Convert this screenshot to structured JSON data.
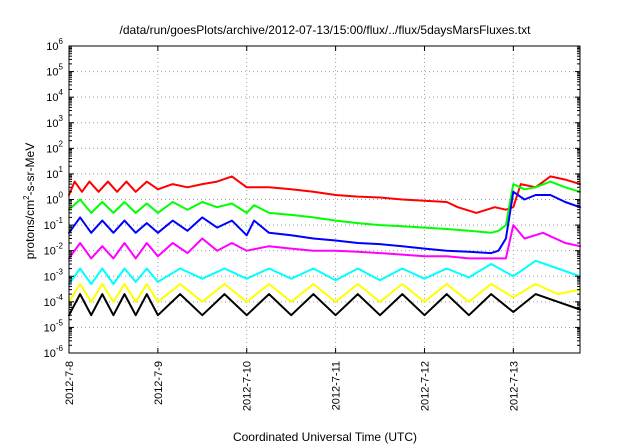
{
  "chart_data": {
    "type": "line",
    "title": "/data/run/goesPlots/archive/2012-07-13/15:00/flux/../flux/5daysMarsFluxes.txt",
    "xlabel": "Coordinated Universal Time (UTC)",
    "ylabel": "protons/cm²-s-sr-MeV",
    "y_scale": "log",
    "ylim": [
      1e-06,
      1000000.0
    ],
    "xlim": [
      "2012-07-08 00:00",
      "2012-07-13 18:00"
    ],
    "grid": true,
    "legend": "none",
    "x_ticks": [
      {
        "value": "2012-07-08 00:00",
        "label": "2012-7-8"
      },
      {
        "value": "2012-07-09 00:00",
        "label": "2012-7-9"
      },
      {
        "value": "2012-07-10 00:00",
        "label": "2012-7-10"
      },
      {
        "value": "2012-07-11 00:00",
        "label": "2012-7-11"
      },
      {
        "value": "2012-07-12 00:00",
        "label": "2012-7-12"
      },
      {
        "value": "2012-07-13 00:00",
        "label": "2012-7-13"
      }
    ],
    "y_ticks": [
      {
        "value": 1e-06,
        "base": "10",
        "exp": "-6"
      },
      {
        "value": 1e-05,
        "base": "10",
        "exp": "-5"
      },
      {
        "value": 0.0001,
        "base": "10",
        "exp": "-4"
      },
      {
        "value": 0.001,
        "base": "10",
        "exp": "-3"
      },
      {
        "value": 0.01,
        "base": "10",
        "exp": "-2"
      },
      {
        "value": 0.1,
        "base": "10",
        "exp": "-1"
      },
      {
        "value": 1,
        "base": "10",
        "exp": "0"
      },
      {
        "value": 10,
        "base": "10",
        "exp": "1"
      },
      {
        "value": 100,
        "base": "10",
        "exp": "2"
      },
      {
        "value": 1000,
        "base": "10",
        "exp": "3"
      },
      {
        "value": 10000,
        "base": "10",
        "exp": "4"
      },
      {
        "value": 100000,
        "base": "10",
        "exp": "5"
      },
      {
        "value": 1000000,
        "base": "10",
        "exp": "6"
      }
    ],
    "series": [
      {
        "color": "#ff0000",
        "x": [
          "2012-07-08 00:00",
          "2012-07-08 01:30",
          "2012-07-08 03:30",
          "2012-07-08 05:30",
          "2012-07-08 08:00",
          "2012-07-08 10:30",
          "2012-07-08 13:00",
          "2012-07-08 15:30",
          "2012-07-08 18:00",
          "2012-07-08 21:00",
          "2012-07-09 00:00",
          "2012-07-09 04:00",
          "2012-07-09 08:00",
          "2012-07-09 12:00",
          "2012-07-09 16:00",
          "2012-07-09 20:00",
          "2012-07-10 00:00",
          "2012-07-10 06:00",
          "2012-07-10 12:00",
          "2012-07-10 18:00",
          "2012-07-11 00:00",
          "2012-07-11 06:00",
          "2012-07-11 12:00",
          "2012-07-11 18:00",
          "2012-07-12 00:00",
          "2012-07-12 06:00",
          "2012-07-12 09:00",
          "2012-07-12 14:00",
          "2012-07-12 19:00",
          "2012-07-12 22:00",
          "2012-07-13 00:00",
          "2012-07-13 02:00",
          "2012-07-13 06:00",
          "2012-07-13 10:00",
          "2012-07-13 14:00",
          "2012-07-13 18:00"
        ],
        "values": [
          1.5,
          5,
          2,
          5,
          2,
          5,
          2,
          5,
          2,
          5,
          2.5,
          4,
          3,
          4,
          5,
          8,
          3,
          3,
          2.5,
          2,
          1.5,
          1.3,
          1.2,
          1,
          0.9,
          0.8,
          0.5,
          0.3,
          0.5,
          0.4,
          0.5,
          4,
          3,
          8,
          6,
          4
        ]
      },
      {
        "color": "#00ff00",
        "x": [
          "2012-07-08 00:00",
          "2012-07-08 03:00",
          "2012-07-08 06:00",
          "2012-07-08 09:00",
          "2012-07-08 12:00",
          "2012-07-08 15:00",
          "2012-07-08 18:00",
          "2012-07-08 21:00",
          "2012-07-09 00:00",
          "2012-07-09 04:00",
          "2012-07-09 08:00",
          "2012-07-09 12:00",
          "2012-07-09 16:00",
          "2012-07-09 20:00",
          "2012-07-10 00:00",
          "2012-07-10 02:00",
          "2012-07-10 06:00",
          "2012-07-10 12:00",
          "2012-07-10 18:00",
          "2012-07-11 00:00",
          "2012-07-11 06:00",
          "2012-07-11 12:00",
          "2012-07-11 18:00",
          "2012-07-12 00:00",
          "2012-07-12 06:00",
          "2012-07-12 12:00",
          "2012-07-12 18:00",
          "2012-07-12 20:00",
          "2012-07-12 22:00",
          "2012-07-13 00:00",
          "2012-07-13 03:00",
          "2012-07-13 06:00",
          "2012-07-13 10:00",
          "2012-07-13 14:00",
          "2012-07-13 18:00"
        ],
        "values": [
          0.4,
          1,
          0.3,
          0.8,
          0.3,
          0.8,
          0.3,
          0.7,
          0.3,
          0.8,
          0.4,
          0.8,
          0.5,
          0.7,
          0.3,
          0.6,
          0.3,
          0.25,
          0.2,
          0.15,
          0.12,
          0.1,
          0.09,
          0.08,
          0.07,
          0.06,
          0.05,
          0.06,
          0.1,
          4,
          2.5,
          3,
          5,
          3,
          2
        ]
      },
      {
        "color": "#0000ff",
        "x": [
          "2012-07-08 00:00",
          "2012-07-08 03:00",
          "2012-07-08 06:00",
          "2012-07-08 09:00",
          "2012-07-08 12:00",
          "2012-07-08 15:00",
          "2012-07-08 18:00",
          "2012-07-08 21:00",
          "2012-07-09 00:00",
          "2012-07-09 04:00",
          "2012-07-09 08:00",
          "2012-07-09 12:00",
          "2012-07-09 16:00",
          "2012-07-09 20:00",
          "2012-07-10 00:00",
          "2012-07-10 02:00",
          "2012-07-10 06:00",
          "2012-07-10 12:00",
          "2012-07-10 18:00",
          "2012-07-11 00:00",
          "2012-07-11 06:00",
          "2012-07-11 12:00",
          "2012-07-11 18:00",
          "2012-07-12 00:00",
          "2012-07-12 06:00",
          "2012-07-12 12:00",
          "2012-07-12 18:00",
          "2012-07-12 20:00",
          "2012-07-12 22:00",
          "2012-07-13 00:00",
          "2012-07-13 03:00",
          "2012-07-13 06:00",
          "2012-07-13 10:00",
          "2012-07-13 14:00",
          "2012-07-13 18:00"
        ],
        "values": [
          0.05,
          0.2,
          0.05,
          0.15,
          0.05,
          0.15,
          0.05,
          0.12,
          0.05,
          0.15,
          0.06,
          0.2,
          0.08,
          0.15,
          0.04,
          0.15,
          0.05,
          0.04,
          0.03,
          0.025,
          0.02,
          0.018,
          0.015,
          0.012,
          0.01,
          0.009,
          0.008,
          0.01,
          0.03,
          2,
          1,
          1.5,
          1.5,
          0.8,
          0.5
        ]
      },
      {
        "color": "#ff00ff",
        "x": [
          "2012-07-08 00:00",
          "2012-07-08 03:00",
          "2012-07-08 06:00",
          "2012-07-08 09:00",
          "2012-07-08 12:00",
          "2012-07-08 15:00",
          "2012-07-08 18:00",
          "2012-07-08 21:00",
          "2012-07-09 00:00",
          "2012-07-09 04:00",
          "2012-07-09 08:00",
          "2012-07-09 12:00",
          "2012-07-09 16:00",
          "2012-07-09 20:00",
          "2012-07-10 00:00",
          "2012-07-10 06:00",
          "2012-07-10 12:00",
          "2012-07-10 18:00",
          "2012-07-11 00:00",
          "2012-07-11 06:00",
          "2012-07-11 12:00",
          "2012-07-11 18:00",
          "2012-07-12 00:00",
          "2012-07-12 06:00",
          "2012-07-12 12:00",
          "2012-07-12 18:00",
          "2012-07-12 22:00",
          "2012-07-13 00:00",
          "2012-07-13 03:00",
          "2012-07-13 08:00",
          "2012-07-13 14:00",
          "2012-07-13 18:00"
        ],
        "values": [
          0.005,
          0.02,
          0.005,
          0.015,
          0.005,
          0.02,
          0.005,
          0.02,
          0.006,
          0.02,
          0.008,
          0.03,
          0.01,
          0.02,
          0.01,
          0.015,
          0.012,
          0.01,
          0.01,
          0.009,
          0.008,
          0.007,
          0.006,
          0.006,
          0.005,
          0.005,
          0.005,
          0.1,
          0.03,
          0.05,
          0.02,
          0.015
        ]
      },
      {
        "color": "#00ffff",
        "x": [
          "2012-07-08 00:00",
          "2012-07-08 03:00",
          "2012-07-08 06:00",
          "2012-07-08 09:00",
          "2012-07-08 12:00",
          "2012-07-08 15:00",
          "2012-07-08 18:00",
          "2012-07-08 21:00",
          "2012-07-09 00:00",
          "2012-07-09 06:00",
          "2012-07-09 12:00",
          "2012-07-09 18:00",
          "2012-07-10 00:00",
          "2012-07-10 06:00",
          "2012-07-10 12:00",
          "2012-07-10 18:00",
          "2012-07-11 00:00",
          "2012-07-11 06:00",
          "2012-07-11 12:00",
          "2012-07-11 18:00",
          "2012-07-12 00:00",
          "2012-07-12 06:00",
          "2012-07-12 12:00",
          "2012-07-12 18:00",
          "2012-07-13 00:00",
          "2012-07-13 06:00",
          "2012-07-13 12:00",
          "2012-07-13 18:00"
        ],
        "values": [
          0.0005,
          0.002,
          0.0005,
          0.002,
          0.0005,
          0.002,
          0.0006,
          0.002,
          0.0006,
          0.002,
          0.0008,
          0.002,
          0.0008,
          0.002,
          0.0008,
          0.002,
          0.0007,
          0.002,
          0.0007,
          0.002,
          0.0008,
          0.002,
          0.0009,
          0.003,
          0.001,
          0.004,
          0.002,
          0.001
        ]
      },
      {
        "color": "#ffff00",
        "x": [
          "2012-07-08 00:00",
          "2012-07-08 03:00",
          "2012-07-08 06:00",
          "2012-07-08 09:00",
          "2012-07-08 12:00",
          "2012-07-08 15:00",
          "2012-07-08 18:00",
          "2012-07-08 21:00",
          "2012-07-09 00:00",
          "2012-07-09 06:00",
          "2012-07-09 12:00",
          "2012-07-09 18:00",
          "2012-07-10 00:00",
          "2012-07-10 06:00",
          "2012-07-10 12:00",
          "2012-07-10 18:00",
          "2012-07-11 00:00",
          "2012-07-11 06:00",
          "2012-07-11 12:00",
          "2012-07-11 18:00",
          "2012-07-12 00:00",
          "2012-07-12 06:00",
          "2012-07-12 12:00",
          "2012-07-12 18:00",
          "2012-07-13 00:00",
          "2012-07-13 06:00",
          "2012-07-13 12:00",
          "2012-07-13 18:00"
        ],
        "values": [
          0.0001,
          0.0005,
          0.0001,
          0.0005,
          0.0001,
          0.0005,
          0.0001,
          0.0005,
          0.0001,
          0.0005,
          0.0001,
          0.0005,
          0.0001,
          0.0005,
          0.0001,
          0.0005,
          0.0001,
          0.0005,
          0.0001,
          0.0005,
          0.0001,
          0.0005,
          0.0001,
          0.0005,
          0.00015,
          0.0005,
          0.0002,
          0.0003
        ]
      },
      {
        "color": "#000000",
        "x": [
          "2012-07-08 00:00",
          "2012-07-08 03:00",
          "2012-07-08 06:00",
          "2012-07-08 09:00",
          "2012-07-08 12:00",
          "2012-07-08 15:00",
          "2012-07-08 18:00",
          "2012-07-08 21:00",
          "2012-07-09 00:00",
          "2012-07-09 06:00",
          "2012-07-09 12:00",
          "2012-07-09 18:00",
          "2012-07-10 00:00",
          "2012-07-10 06:00",
          "2012-07-10 12:00",
          "2012-07-10 18:00",
          "2012-07-11 00:00",
          "2012-07-11 06:00",
          "2012-07-11 12:00",
          "2012-07-11 18:00",
          "2012-07-12 00:00",
          "2012-07-12 06:00",
          "2012-07-12 12:00",
          "2012-07-12 18:00",
          "2012-07-13 00:00",
          "2012-07-13 06:00",
          "2012-07-13 12:00",
          "2012-07-13 18:00"
        ],
        "values": [
          3e-05,
          0.0002,
          3e-05,
          0.0002,
          3e-05,
          0.0002,
          3e-05,
          0.0002,
          3e-05,
          0.0002,
          3e-05,
          0.0002,
          3e-05,
          0.0002,
          3e-05,
          0.0002,
          3e-05,
          0.0002,
          3e-05,
          0.0002,
          3e-05,
          0.0002,
          3e-05,
          0.0002,
          4e-05,
          0.0002,
          0.0001,
          5e-05
        ]
      }
    ]
  }
}
